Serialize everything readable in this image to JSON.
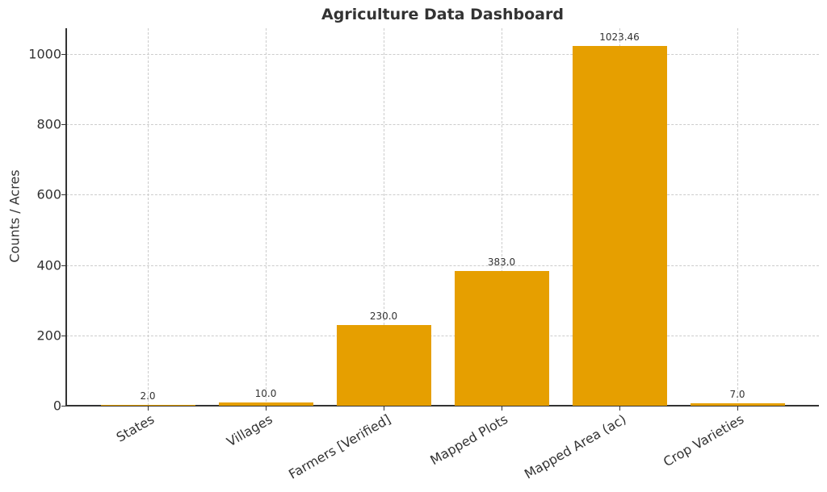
{
  "chart_data": {
    "type": "bar",
    "title": "Agriculture Data Dashboard",
    "xlabel": "",
    "ylabel": "Counts / Acres",
    "categories": [
      "States",
      "Villages",
      "Farmers [Verified]",
      "Mapped Plots",
      "Mapped Area (ac)",
      "Crop Varieties"
    ],
    "values": [
      2.0,
      10.0,
      230.0,
      383.0,
      1023.46,
      7.0
    ],
    "value_labels": [
      "2.0",
      "10.0",
      "230.0",
      "383.0",
      "1023.46",
      "7.0"
    ],
    "ylim": [
      0,
      1075
    ],
    "yticks": [
      0,
      200,
      400,
      600,
      800,
      1000
    ],
    "grid": true,
    "grid_style": "dashed",
    "legend": null,
    "bar_color": "#E69F00"
  },
  "ui": {
    "yticks_labels": [
      "0",
      "200",
      "400",
      "600",
      "800",
      "1000"
    ]
  }
}
